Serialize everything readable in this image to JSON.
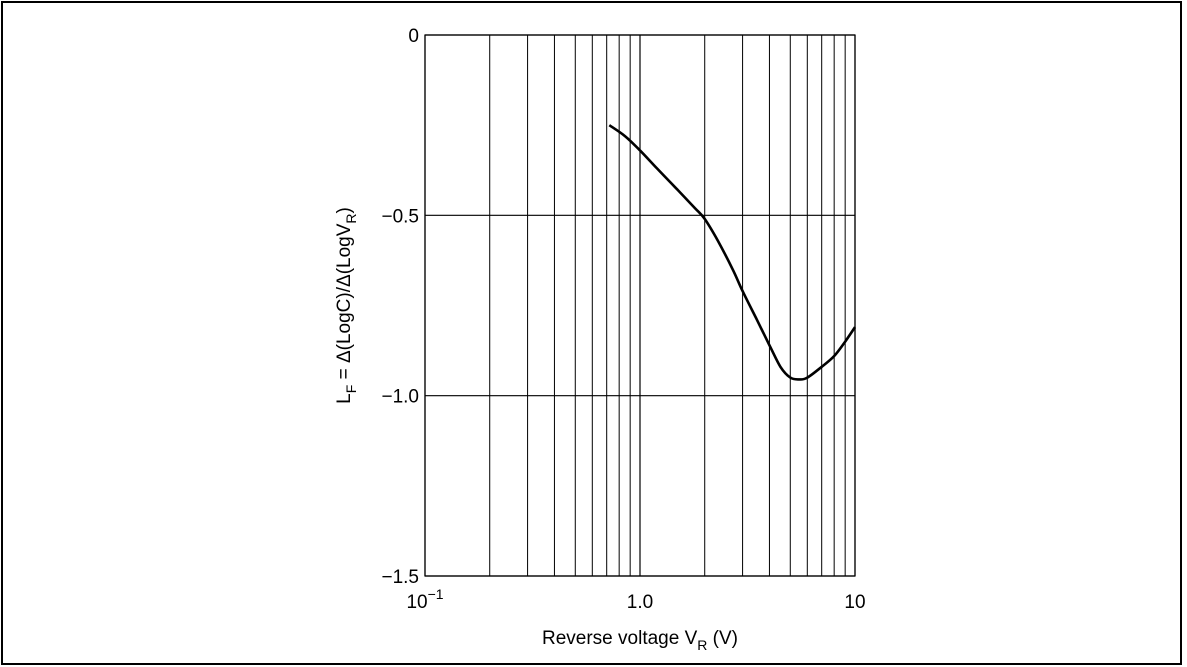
{
  "chart_data": {
    "type": "line",
    "xscale": "log",
    "xlim": [
      0.1,
      10
    ],
    "ylim": [
      -1.5,
      0
    ],
    "grid": true,
    "xlabel": {
      "main": "Reverse voltage V",
      "sub": "R",
      "unit": " (V)"
    },
    "ylabel": {
      "main": "L",
      "sub1": "F",
      "mid": " = Δ(LogC)/Δ(LogV",
      "sub2": "R",
      "end": ")"
    },
    "x_ticks": [
      {
        "value": 0.1,
        "base": "10",
        "exp": "−1"
      },
      {
        "value": 1.0,
        "label": "1.0"
      },
      {
        "value": 10,
        "label": "10"
      }
    ],
    "y_ticks": [
      {
        "value": 0,
        "label": "0"
      },
      {
        "value": -0.5,
        "label": "−0.5"
      },
      {
        "value": -1.0,
        "label": "−1.0"
      },
      {
        "value": -1.5,
        "label": "−1.5"
      }
    ],
    "series": [
      {
        "x": [
          0.72,
          0.85,
          1.0,
          1.2,
          1.5,
          1.8,
          2.0,
          2.3,
          2.7,
          3.0,
          3.5,
          4.0,
          4.5,
          5.0,
          5.5,
          6.0,
          7.0,
          8.0,
          9.0,
          10.0
        ],
        "y": [
          -0.25,
          -0.28,
          -0.32,
          -0.37,
          -0.43,
          -0.48,
          -0.51,
          -0.57,
          -0.65,
          -0.71,
          -0.79,
          -0.86,
          -0.92,
          -0.95,
          -0.955,
          -0.95,
          -0.92,
          -0.89,
          -0.85,
          -0.81
        ]
      }
    ]
  }
}
